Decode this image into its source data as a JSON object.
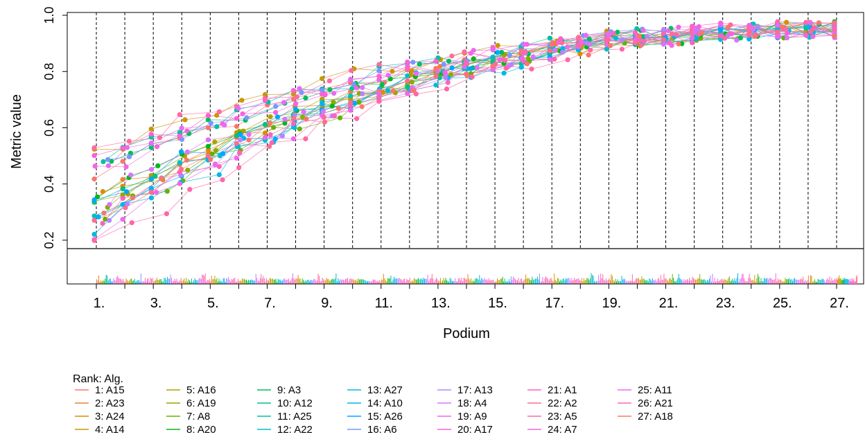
{
  "chart_data": {
    "type": "line",
    "xlabel": "Podium",
    "ylabel": "Metric value",
    "ylim": [
      0.17,
      1.01
    ],
    "yticks": [
      "0.2",
      "0.4",
      "0.6",
      "0.8",
      "1.0"
    ],
    "yticks_values": [
      0.2,
      0.4,
      0.6,
      0.8,
      1.0
    ],
    "xticks": [
      "1.",
      "3.",
      "5.",
      "7.",
      "9.",
      "11.",
      "13.",
      "15.",
      "17.",
      "19.",
      "21.",
      "23.",
      "25.",
      "27."
    ],
    "grid": "vertical dashed lines at each podium",
    "legend_title": "Rank: Alg.",
    "legend_placement": "bottom",
    "legend": [
      {
        "label": "1: A15",
        "color": "#F8766D"
      },
      {
        "label": "2: A23",
        "color": "#EC8239"
      },
      {
        "label": "3: A24",
        "color": "#DB8E00"
      },
      {
        "label": "4: A14",
        "color": "#C79800"
      },
      {
        "label": "5: A16",
        "color": "#AEA200"
      },
      {
        "label": "6: A19",
        "color": "#8FAA00"
      },
      {
        "label": "7: A8",
        "color": "#64B200"
      },
      {
        "label": "8: A20",
        "color": "#00B81B"
      },
      {
        "label": "9: A3",
        "color": "#00BD5C"
      },
      {
        "label": "10: A12",
        "color": "#00C085"
      },
      {
        "label": "11: A25",
        "color": "#00C1A7"
      },
      {
        "label": "12: A22",
        "color": "#00BFC4"
      },
      {
        "label": "13: A27",
        "color": "#00BADE"
      },
      {
        "label": "14: A10",
        "color": "#00B2F3"
      },
      {
        "label": "15: A26",
        "color": "#00A6FF"
      },
      {
        "label": "16: A6",
        "color": "#7C96FF"
      },
      {
        "label": "17: A13",
        "color": "#B385FF"
      },
      {
        "label": "18: A4",
        "color": "#D874FD"
      },
      {
        "label": "19: A9",
        "color": "#EF67EB"
      },
      {
        "label": "20: A17",
        "color": "#FD61D3"
      },
      {
        "label": "21: A1",
        "color": "#FF62BC"
      },
      {
        "label": "22: A2",
        "color": "#FF6C91"
      },
      {
        "label": "23: A5",
        "color": "#FF6AA4"
      },
      {
        "label": "24: A7",
        "color": "#F763E0"
      },
      {
        "label": "25: A11",
        "color": "#E76BF3"
      },
      {
        "label": "26: A21",
        "color": "#FF66A8"
      },
      {
        "label": "27: A18",
        "color": "#F8766D"
      }
    ],
    "podium_count": 27,
    "series_count": 27,
    "note_values": "per-algorithm metric values across podium positions, increasing roughly from 0.2-0.55 at podium 1 to 0.92-0.98 at podium 27"
  }
}
